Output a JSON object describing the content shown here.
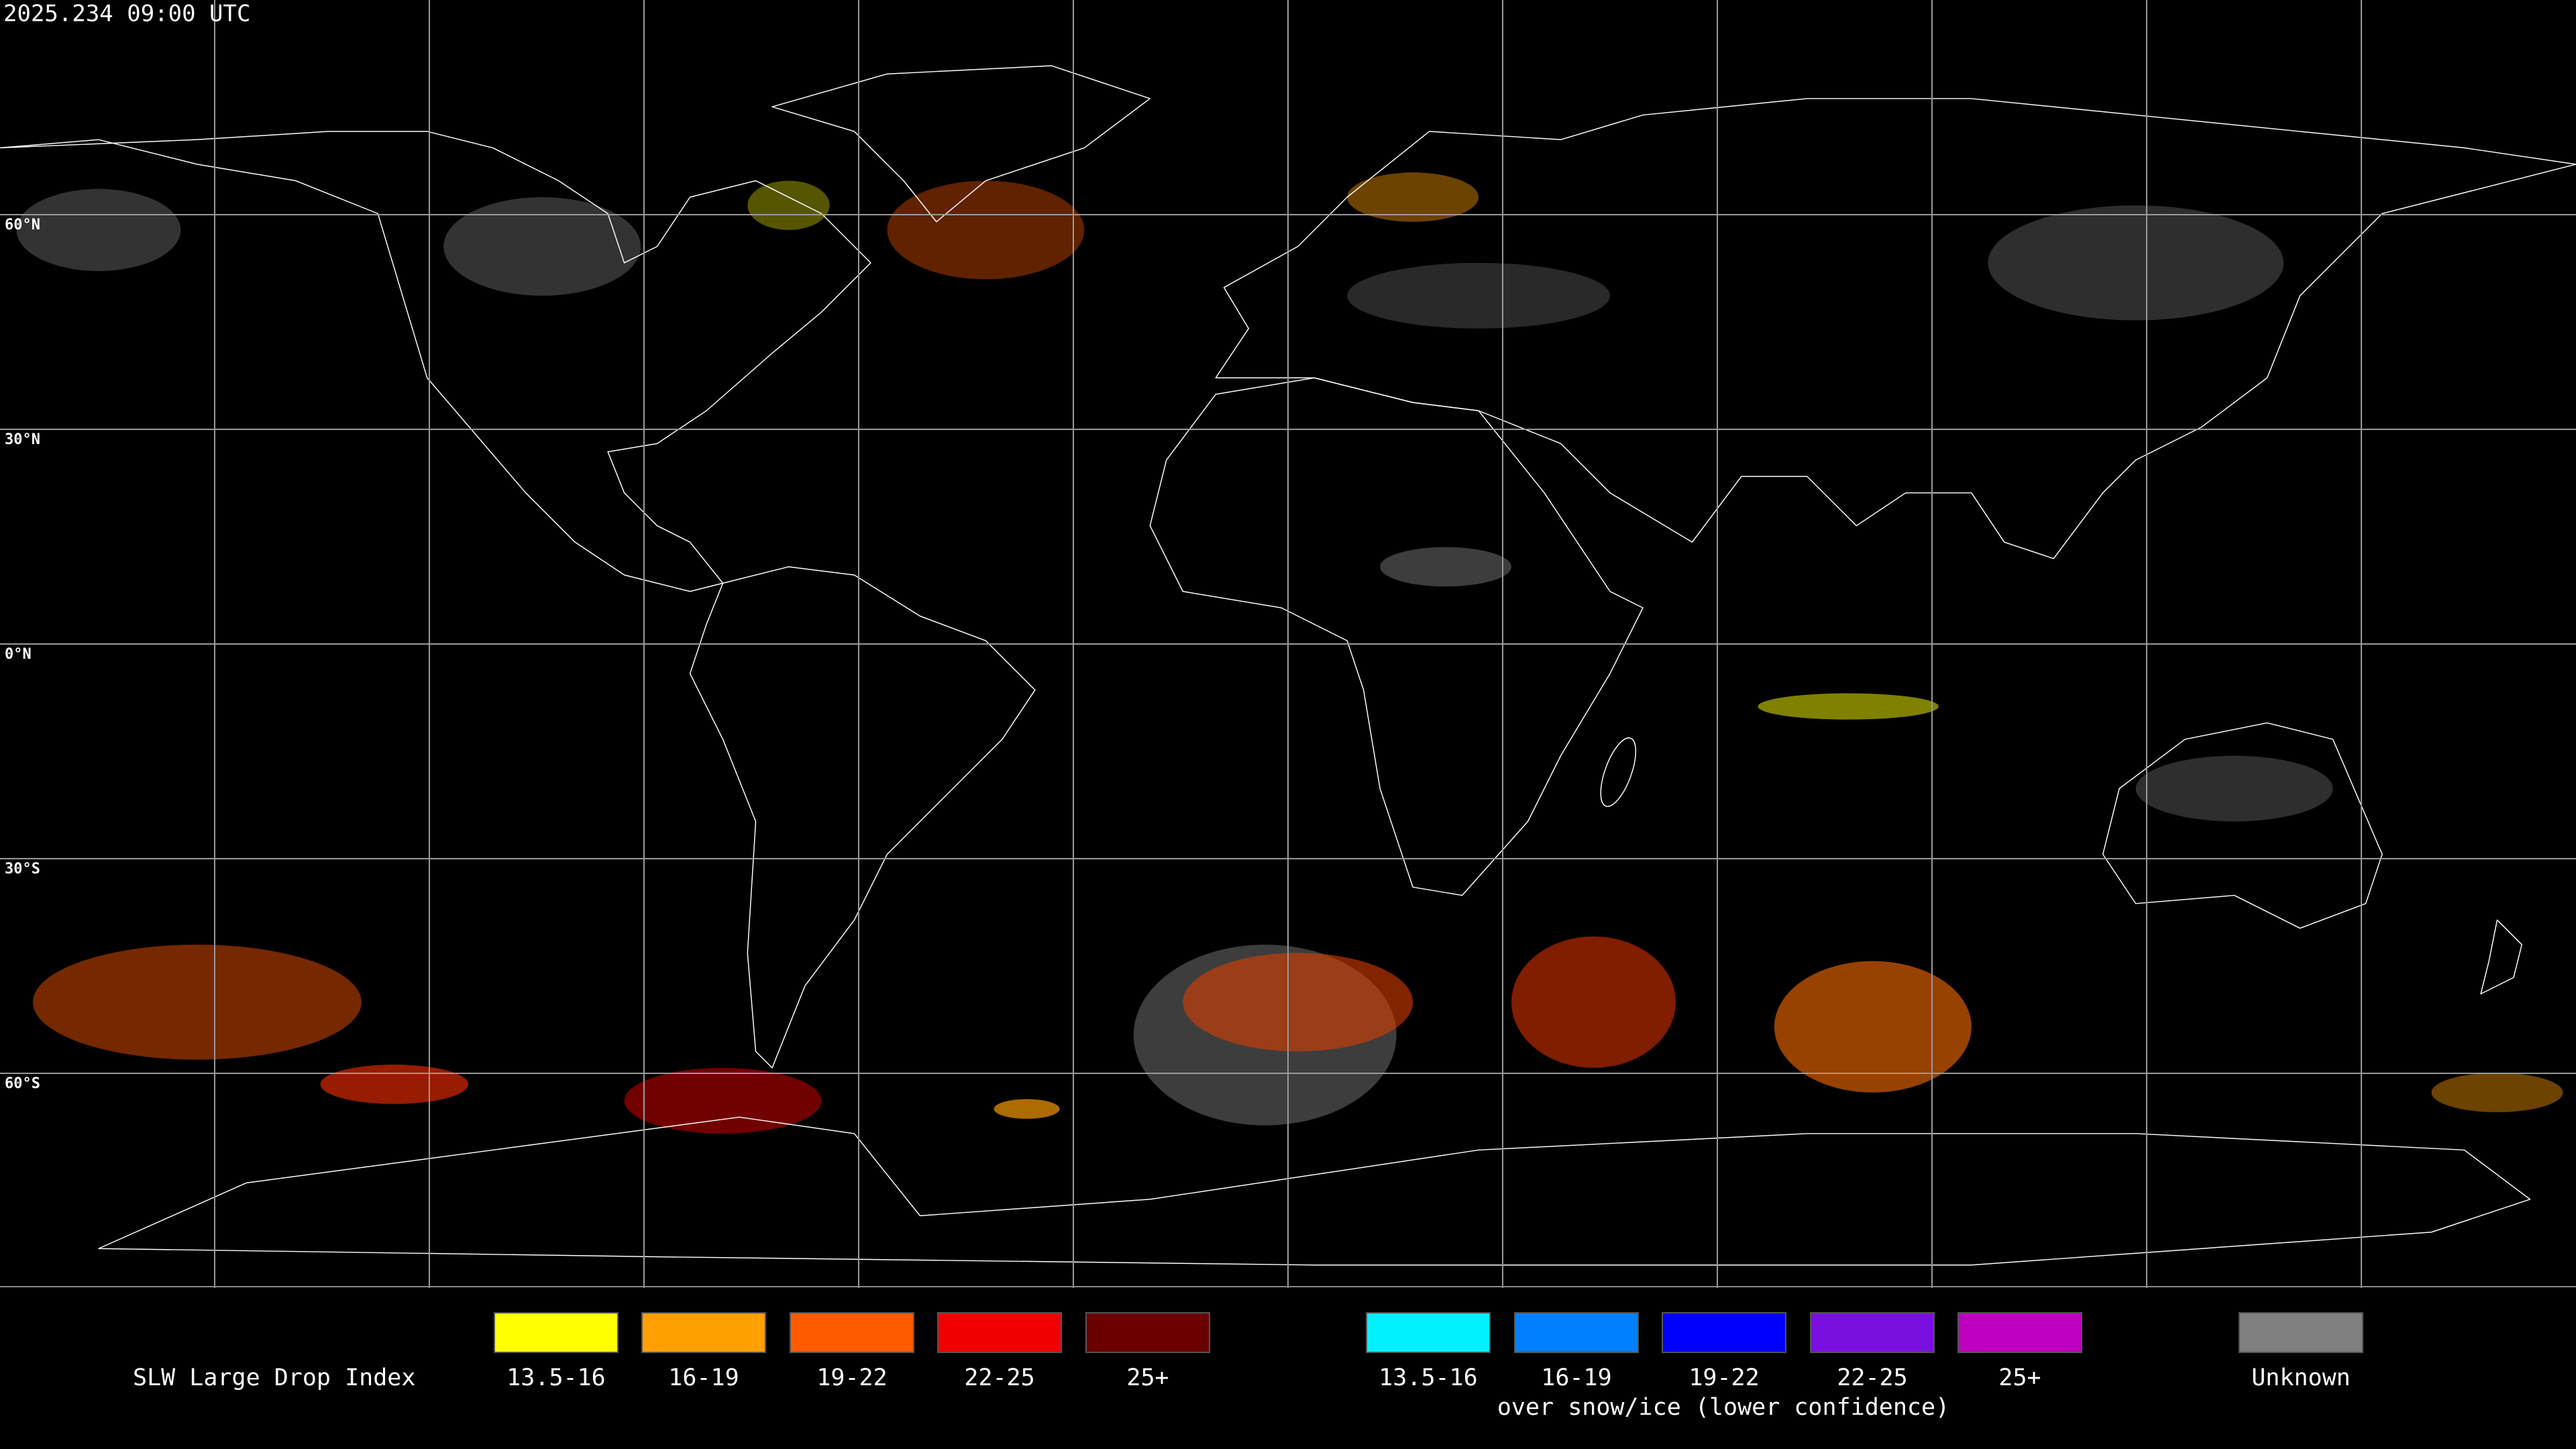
{
  "header": {
    "timestamp": "2025.234 09:00 UTC"
  },
  "grid": {
    "latitudes": [
      {
        "value": 60,
        "label": "60°N"
      },
      {
        "value": 30,
        "label": "30°N"
      },
      {
        "value": 0,
        "label": "0°N"
      },
      {
        "value": -30,
        "label": "30°S"
      },
      {
        "value": -60,
        "label": "60°S"
      }
    ]
  },
  "legend": {
    "title": "SLW Large Drop Index",
    "groups": [
      {
        "items": [
          {
            "label": "13.5-16",
            "color": "#ffff00"
          },
          {
            "label": "16-19",
            "color": "#ffa000"
          },
          {
            "label": "19-22",
            "color": "#ff5a00"
          },
          {
            "label": "22-25",
            "color": "#f00000"
          },
          {
            "label": "25+",
            "color": "#6a0000"
          }
        ]
      },
      {
        "items": [
          {
            "label": "13.5-16",
            "color": "#00f0ff"
          },
          {
            "label": "16-19",
            "color": "#0080ff"
          },
          {
            "label": "19-22",
            "color": "#0000ff"
          },
          {
            "label": "22-25",
            "color": "#7a10e0"
          },
          {
            "label": "25+",
            "color": "#c000c0"
          }
        ],
        "caption": "over snow/ice (lower confidence)"
      },
      {
        "items": [
          {
            "label": "Unknown",
            "color": "#808080"
          }
        ]
      }
    ]
  }
}
